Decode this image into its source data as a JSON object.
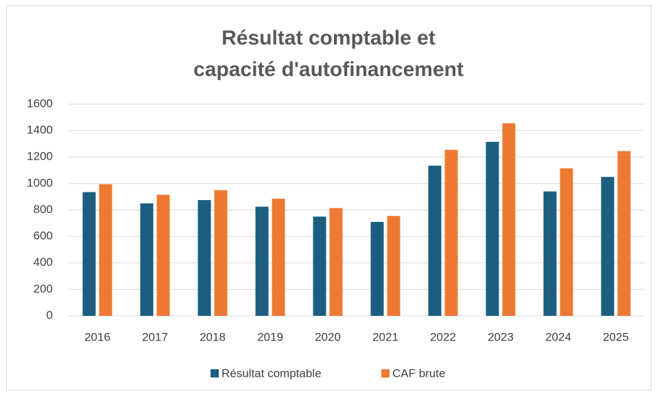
{
  "chart_data": {
    "type": "bar",
    "title": [
      "Résultat comptable et",
      "capacité d'autofinancement"
    ],
    "categories": [
      "2016",
      "2017",
      "2018",
      "2019",
      "2020",
      "2021",
      "2022",
      "2023",
      "2024",
      "2025"
    ],
    "series": [
      {
        "name": "Résultat comptable",
        "color": "#1b5e80",
        "values": [
          935,
          850,
          875,
          825,
          750,
          710,
          1135,
          1315,
          940,
          1050
        ]
      },
      {
        "name": "CAF brute",
        "color": "#ed7a32",
        "values": [
          995,
          915,
          950,
          885,
          815,
          755,
          1255,
          1455,
          1115,
          1245
        ]
      }
    ],
    "ylim": [
      0,
      1600
    ],
    "yticks": [
      0,
      200,
      400,
      600,
      800,
      1000,
      1200,
      1400,
      1600
    ],
    "grid": true
  }
}
